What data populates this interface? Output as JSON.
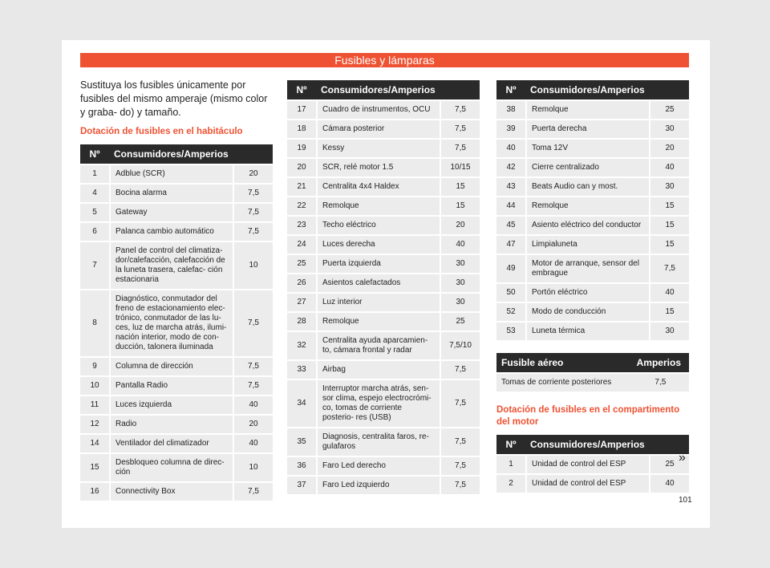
{
  "header": {
    "title": "Fusibles y lámparas"
  },
  "intro": "Sustituya los fusibles únicamente por fusibles del mismo amperaje (mismo color y graba- do) y tamaño.",
  "cabin_title": "Dotación de fusibles en el habitáculo",
  "table_headers": {
    "num": "Nº",
    "desc": "Consumidores/Amperios"
  },
  "col1_rows": [
    {
      "n": "1",
      "d": "Adblue (SCR)",
      "a": "20"
    },
    {
      "n": "4",
      "d": "Bocina alarma",
      "a": "7,5"
    },
    {
      "n": "5",
      "d": "Gateway",
      "a": "7,5"
    },
    {
      "n": "6",
      "d": "Palanca cambio automático",
      "a": "7,5"
    },
    {
      "n": "7",
      "d": "Panel de control del climatiza- dor/calefacción, calefacción de la luneta trasera, calefac- ción estacionaria",
      "a": "10"
    },
    {
      "n": "8",
      "d": "Diagnóstico, conmutador del freno de estacionamiento elec- trónico, conmutador de las lu- ces, luz de marcha atrás, ilumi- nación interior, modo de con- ducción, talonera iluminada",
      "a": "7,5"
    },
    {
      "n": "9",
      "d": "Columna de dirección",
      "a": "7,5"
    },
    {
      "n": "10",
      "d": "Pantalla Radio",
      "a": "7,5"
    },
    {
      "n": "11",
      "d": "Luces izquierda",
      "a": "40"
    },
    {
      "n": "12",
      "d": "Radio",
      "a": "20"
    },
    {
      "n": "14",
      "d": "Ventilador del climatizador",
      "a": "40"
    },
    {
      "n": "15",
      "d": "Desbloqueo columna de direc- ción",
      "a": "10"
    },
    {
      "n": "16",
      "d": "Connectivity Box",
      "a": "7,5"
    }
  ],
  "col2_rows": [
    {
      "n": "17",
      "d": "Cuadro de instrumentos, OCU",
      "a": "7,5"
    },
    {
      "n": "18",
      "d": "Cámara posterior",
      "a": "7,5"
    },
    {
      "n": "19",
      "d": "Kessy",
      "a": "7,5"
    },
    {
      "n": "20",
      "d": "SCR, relé motor 1.5",
      "a": "10/15"
    },
    {
      "n": "21",
      "d": "Centralita 4x4 Haldex",
      "a": "15"
    },
    {
      "n": "22",
      "d": "Remolque",
      "a": "15"
    },
    {
      "n": "23",
      "d": "Techo eléctrico",
      "a": "20"
    },
    {
      "n": "24",
      "d": "Luces derecha",
      "a": "40"
    },
    {
      "n": "25",
      "d": "Puerta izquierda",
      "a": "30"
    },
    {
      "n": "26",
      "d": "Asientos calefactados",
      "a": "30"
    },
    {
      "n": "27",
      "d": "Luz interior",
      "a": "30"
    },
    {
      "n": "28",
      "d": "Remolque",
      "a": "25"
    },
    {
      "n": "32",
      "d": "Centralita ayuda aparcamien- to, cámara frontal y radar",
      "a": "7,5/10"
    },
    {
      "n": "33",
      "d": "Airbag",
      "a": "7,5"
    },
    {
      "n": "34",
      "d": "Interruptor marcha atrás, sen- sor clima, espejo electrocrómi- co, tomas de corriente posterio- res (USB)",
      "a": "7,5"
    },
    {
      "n": "35",
      "d": "Diagnosis, centralita faros, re- gulafaros",
      "a": "7,5"
    },
    {
      "n": "36",
      "d": "Faro Led derecho",
      "a": "7,5"
    },
    {
      "n": "37",
      "d": "Faro Led izquierdo",
      "a": "7,5"
    }
  ],
  "col3_rows": [
    {
      "n": "38",
      "d": "Remolque",
      "a": "25"
    },
    {
      "n": "39",
      "d": "Puerta derecha",
      "a": "30"
    },
    {
      "n": "40",
      "d": "Toma 12V",
      "a": "20"
    },
    {
      "n": "42",
      "d": "Cierre centralizado",
      "a": "40"
    },
    {
      "n": "43",
      "d": "Beats Audio can y most.",
      "a": "30"
    },
    {
      "n": "44",
      "d": "Remolque",
      "a": "15"
    },
    {
      "n": "45",
      "d": "Asiento eléctrico del conductor",
      "a": "15"
    },
    {
      "n": "47",
      "d": "Limpialuneta",
      "a": "15"
    },
    {
      "n": "49",
      "d": "Motor de arranque, sensor del embrague",
      "a": "7,5"
    },
    {
      "n": "50",
      "d": "Portón eléctrico",
      "a": "40"
    },
    {
      "n": "52",
      "d": "Modo de conducción",
      "a": "15"
    },
    {
      "n": "53",
      "d": "Luneta térmica",
      "a": "30"
    }
  ],
  "aereo": {
    "h1": "Fusible aéreo",
    "h2": "Amperios",
    "rows": [
      {
        "d": "Tomas de corriente posteriores",
        "a": "7,5"
      }
    ]
  },
  "engine_title": "Dotación de fusibles en el compartimento del motor",
  "engine_rows": [
    {
      "n": "1",
      "d": "Unidad de control del ESP",
      "a": "25"
    },
    {
      "n": "2",
      "d": "Unidad de control del ESP",
      "a": "40"
    }
  ],
  "more_arrow": "»",
  "page_number": "101"
}
